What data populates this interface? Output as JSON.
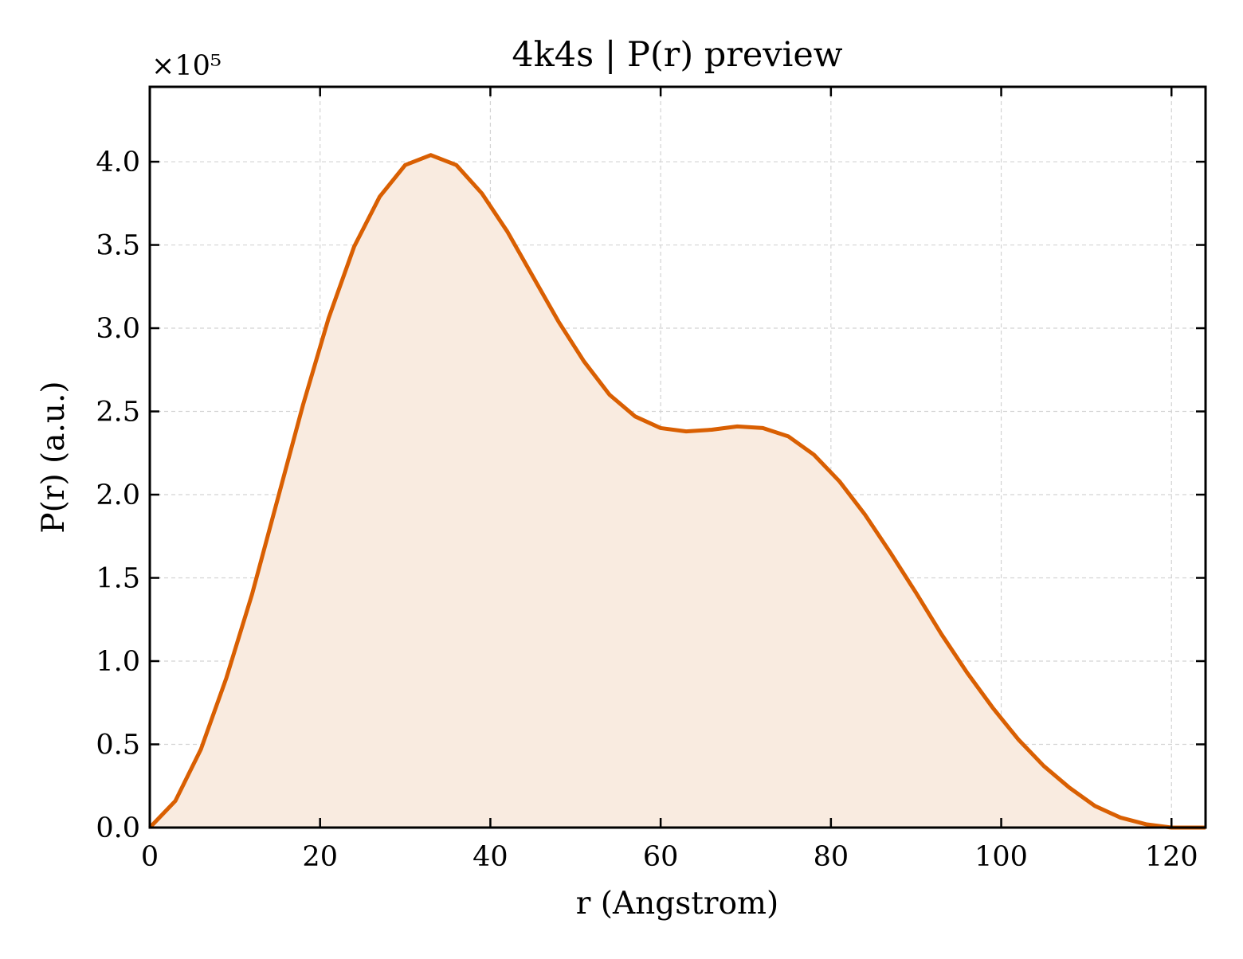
{
  "chart_data": {
    "type": "area",
    "title": "4k4s | P(r) preview",
    "xlabel": "r (Angstrom)",
    "ylabel": "P(r) (a.u.)",
    "y_multiplier_label": "×10⁵",
    "xlim": [
      0,
      124
    ],
    "ylim": [
      0,
      4.45
    ],
    "grid": true,
    "x_ticks": [
      0,
      20,
      40,
      60,
      80,
      100,
      120
    ],
    "x_tick_labels": [
      "0",
      "20",
      "40",
      "60",
      "80",
      "100",
      "120"
    ],
    "y_ticks": [
      0,
      0.5,
      1.0,
      1.5,
      2.0,
      2.5,
      3.0,
      3.5,
      4.0
    ],
    "y_tick_labels": [
      "0.0",
      "0.5",
      "1.0",
      "1.5",
      "2.0",
      "2.5",
      "3.0",
      "3.5",
      "4.0"
    ],
    "series": [
      {
        "color": "#d95f02",
        "fill_color": "#f9ebe0",
        "x": [
          0,
          3,
          6,
          9,
          12,
          15,
          18,
          21,
          24,
          27,
          30,
          33,
          36,
          39,
          42,
          45,
          48,
          51,
          54,
          57,
          60,
          63,
          66,
          69,
          72,
          75,
          78,
          81,
          84,
          87,
          90,
          93,
          96,
          99,
          102,
          105,
          108,
          111,
          114,
          117,
          120,
          123
        ],
        "y": [
          0.0,
          0.16,
          0.47,
          0.9,
          1.4,
          1.97,
          2.54,
          3.06,
          3.49,
          3.79,
          3.98,
          4.04,
          3.98,
          3.81,
          3.58,
          3.31,
          3.04,
          2.8,
          2.6,
          2.47,
          2.4,
          2.38,
          2.39,
          2.41,
          2.4,
          2.35,
          2.24,
          2.08,
          1.88,
          1.65,
          1.41,
          1.16,
          0.93,
          0.72,
          0.53,
          0.37,
          0.24,
          0.13,
          0.06,
          0.02,
          0.0,
          0.0
        ]
      }
    ]
  }
}
